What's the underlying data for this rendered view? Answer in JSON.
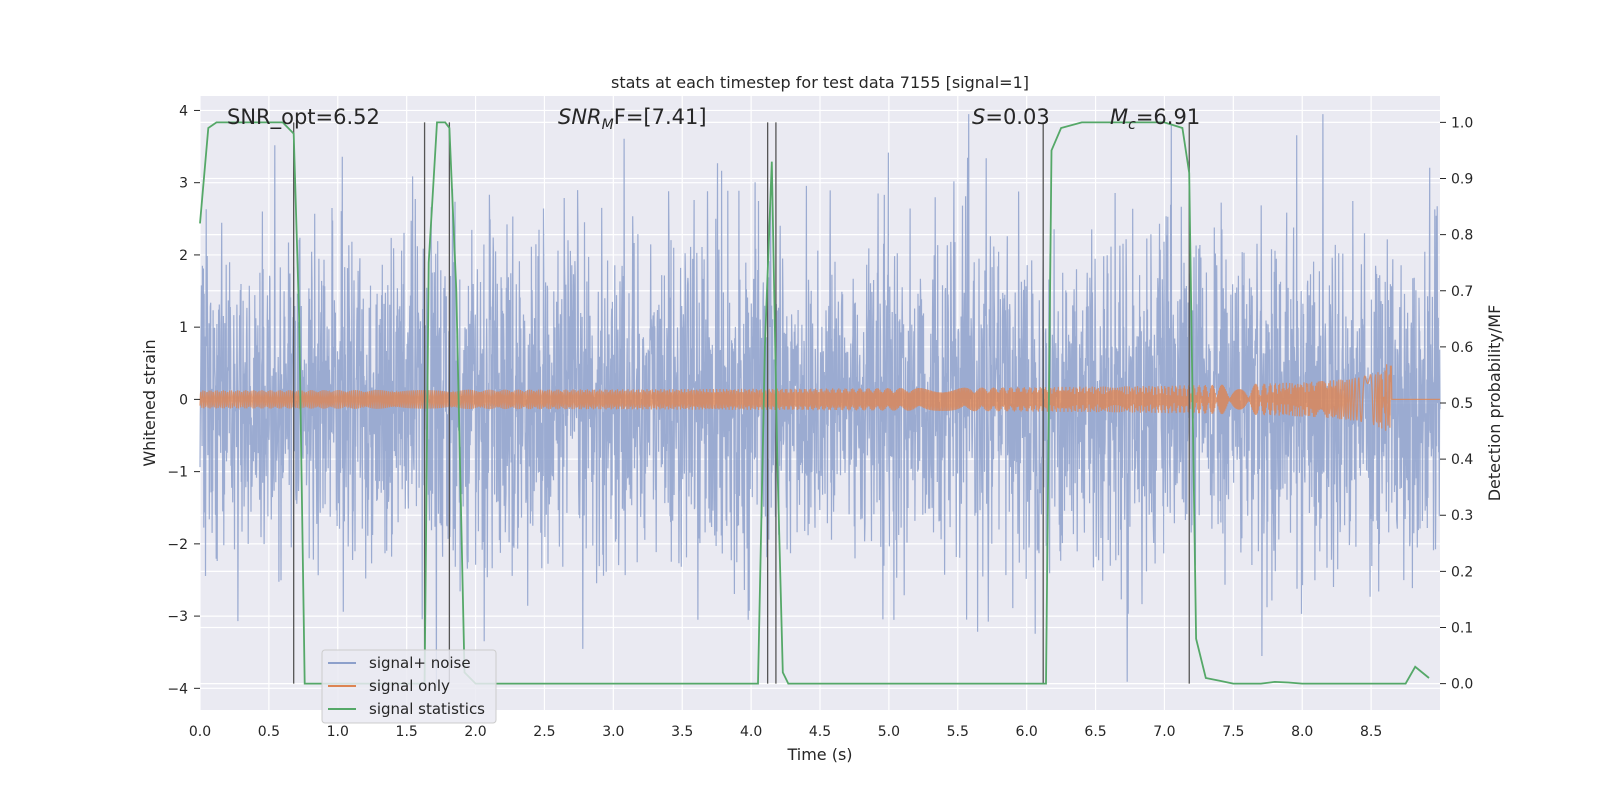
{
  "chart_data": {
    "type": "line",
    "title": "stats at each timestep for test data 7155 [signal=1]",
    "xlabel": "Time (s)",
    "ylabel": "Whitened strain",
    "y2label": "Detection probability/MF",
    "xlim": [
      0.0,
      9.0
    ],
    "ylim": [
      -4.3,
      4.2
    ],
    "y2lim": [
      -0.047,
      1.047
    ],
    "x_ticks": [
      "0.0",
      "0.5",
      "1.0",
      "1.5",
      "2.0",
      "2.5",
      "3.0",
      "3.5",
      "4.0",
      "4.5",
      "5.0",
      "5.5",
      "6.0",
      "6.5",
      "7.0",
      "7.5",
      "8.0",
      "8.5"
    ],
    "y_ticks": [
      "4",
      "3",
      "2",
      "1",
      "0",
      "−1",
      "−2",
      "−3",
      "−4"
    ],
    "y2_ticks": [
      "1.0",
      "0.9",
      "0.8",
      "0.7",
      "0.6",
      "0.5",
      "0.4",
      "0.3",
      "0.2",
      "0.1",
      "0.0"
    ],
    "grid": true,
    "legend_position": "lower-left",
    "annotations": {
      "snr_opt": "SNR_opt=6.52",
      "snr_mf_sym": "SNR",
      "snr_mf_sub": "M",
      "snr_mf_val": "F=[7.41]",
      "s_sym": "S",
      "s_val": "=0.03",
      "mc_sym": "M",
      "mc_sub": "c",
      "mc_val": "=6.91"
    },
    "series": [
      {
        "name": "signal+ noise",
        "color": "#8da0cb",
        "description_kind": "noise",
        "sigma": 1.0,
        "duration": 9.0
      },
      {
        "name": "signal only",
        "color": "#dd8452",
        "description_kind": "chirp",
        "t_merger": 8.65,
        "peak_amplitude": 0.65,
        "cutoff": 8.65
      },
      {
        "name": "signal statistics",
        "color": "#55a868",
        "axis": "right",
        "x": [
          0.0,
          0.06,
          0.12,
          0.2,
          0.3,
          0.4,
          0.5,
          0.6,
          0.68,
          0.72,
          0.76,
          0.85,
          1.0,
          1.2,
          1.4,
          1.6,
          1.63,
          1.66,
          1.72,
          1.78,
          1.81,
          1.86,
          1.92,
          2.0,
          2.5,
          3.0,
          3.5,
          4.0,
          4.05,
          4.1,
          4.15,
          4.19,
          4.23,
          4.27,
          4.35,
          4.5,
          5.0,
          5.5,
          6.0,
          6.1,
          6.14,
          6.18,
          6.25,
          6.4,
          6.8,
          7.0,
          7.13,
          7.18,
          7.23,
          7.3,
          7.4,
          7.5,
          7.7,
          7.8,
          7.9,
          8.0,
          8.3,
          8.6,
          8.75,
          8.82,
          8.92
        ],
        "y": [
          0.82,
          0.99,
          1.0,
          1.0,
          1.0,
          1.0,
          1.0,
          1.0,
          0.98,
          0.65,
          0.0,
          0.0,
          0.0,
          0.0,
          0.0,
          0.0,
          0.0,
          0.75,
          1.0,
          1.0,
          0.99,
          0.7,
          0.02,
          0.0,
          0.0,
          0.0,
          0.0,
          0.0,
          0.0,
          0.6,
          0.93,
          0.4,
          0.02,
          0.0,
          0.0,
          0.0,
          0.0,
          0.0,
          0.0,
          0.0,
          0.0,
          0.95,
          0.99,
          1.0,
          1.0,
          1.0,
          0.99,
          0.91,
          0.08,
          0.01,
          0.005,
          0.0,
          0.0,
          0.003,
          0.002,
          0.0,
          0.0,
          0.0,
          0.0,
          0.03,
          0.01
        ]
      }
    ],
    "vertical_lines": [
      0.68,
      1.63,
      1.81,
      4.12,
      4.18,
      6.12,
      7.18
    ]
  }
}
